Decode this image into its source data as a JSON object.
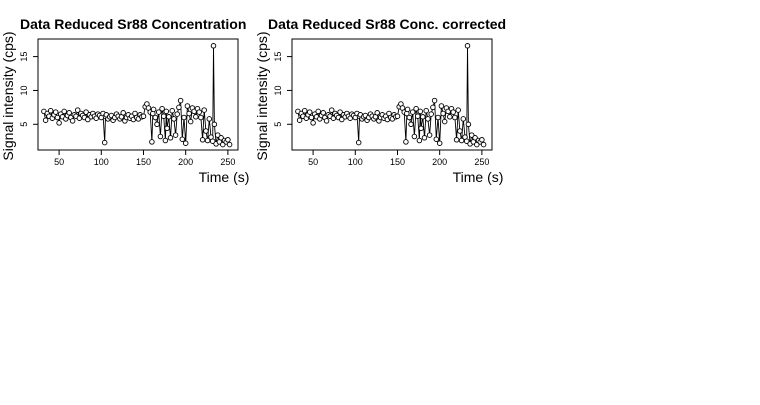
{
  "chart_data": [
    {
      "type": "scatter",
      "title": "Data Reduced Sr88 Concentration",
      "xlabel": "Time (s)",
      "ylabel": "Signal intensity (cps)",
      "xlim": [
        25,
        262
      ],
      "ylim": [
        1.2,
        17.6
      ],
      "x_ticks": [
        "50",
        "100",
        "150",
        "200",
        "250"
      ],
      "y_ticks": [
        "5",
        "10",
        "15"
      ],
      "x_tick_values": [
        50,
        100,
        150,
        200,
        250
      ],
      "y_tick_values": [
        5,
        10,
        15
      ],
      "grid": false,
      "legend": "none",
      "style": "points connected by vertical segments",
      "x": [
        32,
        34,
        36,
        38,
        40,
        42,
        44,
        46,
        48,
        50,
        52,
        54,
        56,
        58,
        60,
        62,
        64,
        66,
        68,
        70,
        72,
        74,
        76,
        78,
        80,
        82,
        84,
        86,
        88,
        90,
        92,
        94,
        96,
        98,
        100,
        102,
        104,
        105,
        106,
        108,
        110,
        112,
        114,
        116,
        118,
        120,
        122,
        124,
        126,
        128,
        130,
        132,
        134,
        136,
        138,
        140,
        142,
        144,
        146,
        148,
        150,
        152,
        154,
        156,
        158,
        160,
        161,
        162,
        164,
        166,
        168,
        170,
        172,
        174,
        176,
        177,
        178,
        180,
        182,
        184,
        186,
        188,
        190,
        192,
        194,
        196,
        198,
        200,
        202,
        204,
        206,
        208,
        210,
        212,
        214,
        216,
        218,
        220,
        222,
        224,
        226,
        228,
        230,
        232,
        233,
        234,
        236,
        238,
        240,
        242,
        244,
        246,
        248,
        250,
        252
      ],
      "y": [
        6.9,
        5.6,
        6.6,
        6.2,
        7.0,
        5.9,
        6.4,
        6.8,
        6.0,
        5.2,
        6.5,
        6.1,
        6.9,
        5.8,
        6.3,
        6.7,
        6.0,
        5.5,
        6.4,
        6.2,
        7.1,
        5.9,
        6.6,
        6.3,
        6.0,
        6.8,
        5.7,
        6.4,
        6.1,
        6.6,
        6.2,
        5.9,
        6.5,
        6.3,
        6.0,
        6.6,
        2.3,
        6.2,
        6.4,
        5.8,
        6.1,
        6.3,
        5.6,
        6.0,
        6.5,
        6.2,
        5.8,
        6.1,
        6.7,
        5.5,
        6.0,
        6.4,
        5.9,
        6.2,
        5.7,
        6.6,
        6.0,
        5.8,
        6.4,
        6.1,
        6.2,
        7.6,
        8.0,
        7.4,
        6.8,
        2.4,
        6.6,
        7.2,
        6.0,
        5.0,
        6.8,
        3.2,
        7.3,
        6.2,
        2.6,
        6.9,
        4.4,
        6.1,
        3.0,
        7.0,
        5.8,
        3.4,
        6.5,
        7.5,
        8.5,
        2.8,
        6.0,
        2.2,
        7.7,
        6.6,
        5.4,
        7.4,
        6.9,
        6.1,
        7.3,
        6.8,
        6.0,
        2.7,
        7.1,
        4.0,
        2.6,
        5.8,
        3.1,
        2.5,
        16.6,
        5.0,
        2.1,
        3.4,
        2.4,
        3.0,
        2.0,
        2.6,
        2.4,
        2.7,
        2.0
      ]
    },
    {
      "type": "scatter",
      "title": "Data Reduced Sr88 Conc. corrected",
      "xlabel": "Time (s)",
      "ylabel": "Signal intensity (cps)",
      "xlim": [
        25,
        262
      ],
      "ylim": [
        1.2,
        17.6
      ],
      "x_ticks": [
        "50",
        "100",
        "150",
        "200",
        "250"
      ],
      "y_ticks": [
        "5",
        "10",
        "15"
      ],
      "x_tick_values": [
        50,
        100,
        150,
        200,
        250
      ],
      "y_tick_values": [
        5,
        10,
        15
      ],
      "grid": false,
      "legend": "none",
      "style": "points connected by vertical segments",
      "x": [
        32,
        34,
        36,
        38,
        40,
        42,
        44,
        46,
        48,
        50,
        52,
        54,
        56,
        58,
        60,
        62,
        64,
        66,
        68,
        70,
        72,
        74,
        76,
        78,
        80,
        82,
        84,
        86,
        88,
        90,
        92,
        94,
        96,
        98,
        100,
        102,
        104,
        105,
        106,
        108,
        110,
        112,
        114,
        116,
        118,
        120,
        122,
        124,
        126,
        128,
        130,
        132,
        134,
        136,
        138,
        140,
        142,
        144,
        146,
        148,
        150,
        152,
        154,
        156,
        158,
        160,
        161,
        162,
        164,
        166,
        168,
        170,
        172,
        174,
        176,
        177,
        178,
        180,
        182,
        184,
        186,
        188,
        190,
        192,
        194,
        196,
        198,
        200,
        202,
        204,
        206,
        208,
        210,
        212,
        214,
        216,
        218,
        220,
        222,
        224,
        226,
        228,
        230,
        232,
        233,
        234,
        236,
        238,
        240,
        242,
        244,
        246,
        248,
        250,
        252
      ],
      "y": [
        6.9,
        5.6,
        6.6,
        6.2,
        7.0,
        5.9,
        6.4,
        6.8,
        6.0,
        5.2,
        6.5,
        6.1,
        6.9,
        5.8,
        6.3,
        6.7,
        6.0,
        5.5,
        6.4,
        6.2,
        7.1,
        5.9,
        6.6,
        6.3,
        6.0,
        6.8,
        5.7,
        6.4,
        6.1,
        6.6,
        6.2,
        5.9,
        6.5,
        6.3,
        6.0,
        6.6,
        2.3,
        6.2,
        6.4,
        5.8,
        6.1,
        6.3,
        5.6,
        6.0,
        6.5,
        6.2,
        5.8,
        6.1,
        6.7,
        5.5,
        6.0,
        6.4,
        5.9,
        6.2,
        5.7,
        6.6,
        6.0,
        5.8,
        6.4,
        6.1,
        6.2,
        7.6,
        8.0,
        7.4,
        6.8,
        2.4,
        6.6,
        7.2,
        6.0,
        5.0,
        6.8,
        3.2,
        7.3,
        6.2,
        2.6,
        6.9,
        4.4,
        6.1,
        3.0,
        7.0,
        5.8,
        3.4,
        6.5,
        7.5,
        8.5,
        2.8,
        6.0,
        2.2,
        7.7,
        6.6,
        5.4,
        7.4,
        6.9,
        6.1,
        7.3,
        6.8,
        6.0,
        2.7,
        7.1,
        4.0,
        2.6,
        5.8,
        3.1,
        2.5,
        16.6,
        5.0,
        2.1,
        3.4,
        2.4,
        3.0,
        2.0,
        2.6,
        2.4,
        2.7,
        2.0
      ]
    }
  ]
}
